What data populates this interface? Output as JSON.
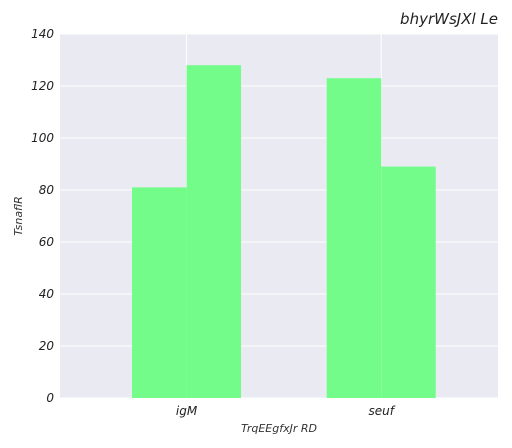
{
  "chart_data": {
    "type": "bar",
    "title": "bhyrWsJXl Le",
    "xlabel": "TrqEEgfxJr RD",
    "ylabel": "TsnaflR",
    "categories": [
      "igM",
      "seuf"
    ],
    "series": [
      {
        "values": [
          81,
          123
        ]
      },
      {
        "values": [
          128,
          89
        ]
      }
    ],
    "ylim": [
      0,
      140
    ],
    "yticks": [
      0,
      20,
      40,
      60,
      80,
      100,
      120,
      140
    ],
    "grid": true,
    "legend": "none",
    "bar_color": "#6dfd83",
    "background_color": "#eaeaf2"
  }
}
